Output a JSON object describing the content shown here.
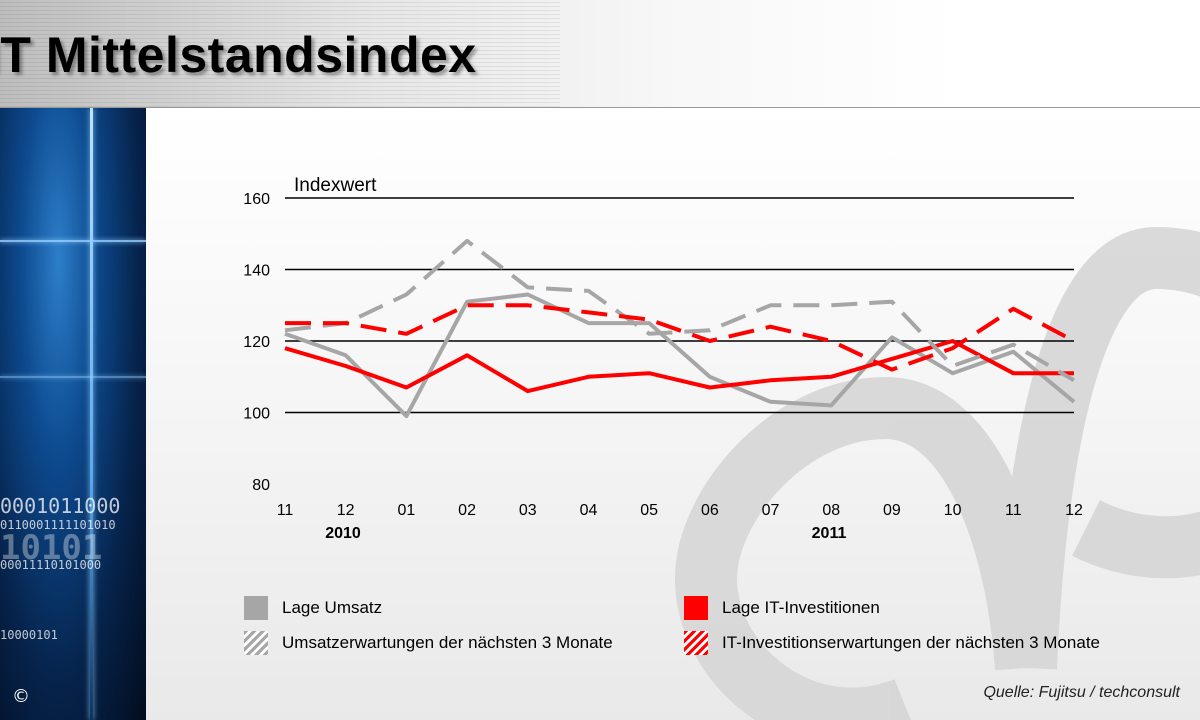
{
  "page": {
    "title": "IT Mittelstandsindex",
    "copyright": "©",
    "source": "Quelle:  Fujitsu / techconsult",
    "side_binary": [
      "0001011000",
      "0110001111101010",
      "10101",
      "00011110101000",
      "10000101"
    ]
  },
  "chart_data": {
    "type": "line",
    "ylabel": "Indexwert",
    "ylim": [
      80,
      160
    ],
    "yticks": [
      80,
      100,
      120,
      140,
      160
    ],
    "categories": [
      "11",
      "12",
      "01",
      "02",
      "03",
      "04",
      "05",
      "06",
      "07",
      "08",
      "09",
      "10",
      "11",
      "12"
    ],
    "year_labels": [
      "2010",
      "2011"
    ],
    "grid": true,
    "legend_position": "bottom",
    "series": [
      {
        "name": "Lage Umsatz",
        "style": "solid",
        "color": "#a6a6a6",
        "values": [
          122,
          116,
          99,
          131,
          133,
          125,
          125,
          110,
          103,
          102,
          121,
          111,
          117,
          103
        ]
      },
      {
        "name": "Lage IT-Investitionen",
        "style": "solid",
        "color": "#ff0000",
        "values": [
          118,
          113,
          107,
          116,
          106,
          110,
          111,
          107,
          109,
          110,
          115,
          120,
          111,
          111
        ]
      },
      {
        "name": "Umsatzerwartungen der nächsten 3 Monate",
        "style": "dashed",
        "color": "#a6a6a6",
        "values": [
          123,
          125,
          133,
          148,
          135,
          134,
          122,
          123,
          130,
          130,
          131,
          113,
          119,
          109
        ]
      },
      {
        "name": "IT-Investitionserwartungen der nächsten 3 Monate",
        "style": "dashed",
        "color": "#ff0000",
        "values": [
          125,
          125,
          122,
          130,
          130,
          128,
          126,
          120,
          124,
          120,
          112,
          118,
          129,
          120
        ]
      }
    ]
  }
}
